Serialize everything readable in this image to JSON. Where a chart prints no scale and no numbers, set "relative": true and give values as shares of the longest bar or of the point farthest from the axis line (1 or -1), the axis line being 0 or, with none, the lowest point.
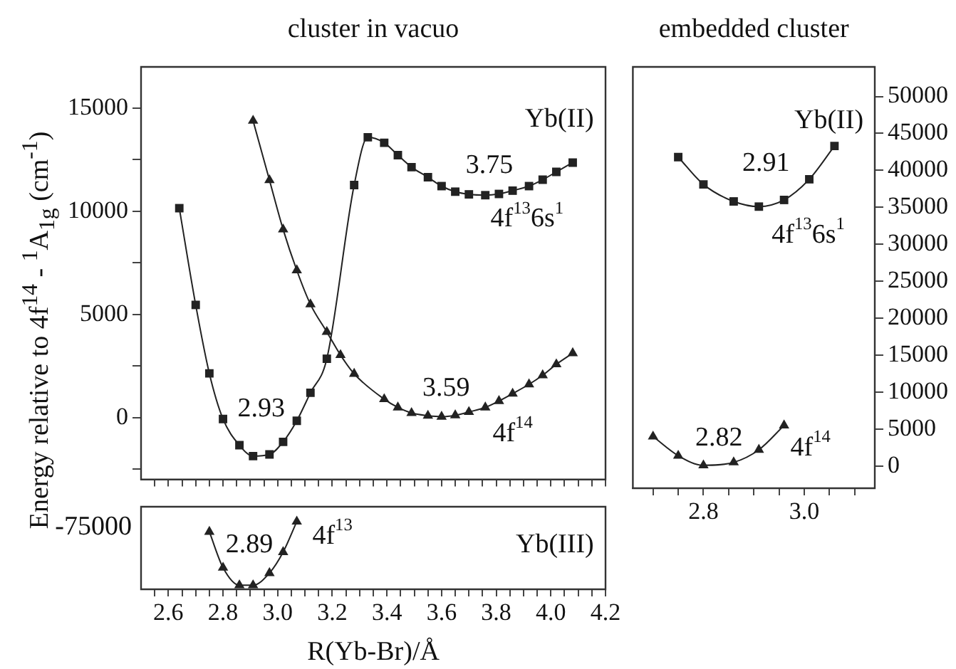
{
  "chart_data": [
    {
      "type": "line",
      "title": "cluster in vacuo",
      "ylabel": "Energy relative to 4f$^{14}$ - $^{1}$A$_{1g}$ (cm$^{-1}$)",
      "xlim": [
        2.5,
        4.2
      ],
      "ylim": [
        -3000,
        17000
      ],
      "xticks": [
        2.55,
        2.6,
        2.65,
        2.7,
        2.75,
        2.8,
        2.85,
        2.9,
        2.95,
        3,
        3.05,
        3.1,
        3.15,
        3.2,
        3.25,
        3.3,
        3.35,
        3.4,
        3.45,
        3.5,
        3.55,
        3.6,
        3.65,
        3.7,
        3.75,
        3.8,
        3.85,
        3.9,
        3.95,
        4,
        4.05,
        4.1,
        4.15,
        4.2
      ],
      "yticks": [
        {
          "value": -2500,
          "label": null
        },
        0,
        {
          "value": 2500,
          "label": null
        },
        5000,
        {
          "value": 7500,
          "label": null
        },
        10000,
        {
          "value": 12500,
          "label": null
        },
        15000
      ],
      "tick_labels": "y",
      "grid": false,
      "line_style": "solid",
      "series": [
        {
          "color": "#222222",
          "marker": "square",
          "x": [
            2.64,
            2.7,
            2.75,
            2.8,
            2.86,
            2.91,
            2.97,
            3.02,
            3.07,
            3.12,
            3.18,
            3.28,
            3.33,
            3.39,
            3.44,
            3.49,
            3.55,
            3.6,
            3.65,
            3.7,
            3.76,
            3.81,
            3.86,
            3.92,
            3.97,
            4.02,
            4.08
          ],
          "values": [
            10150,
            5460,
            2140,
            -70,
            -1340,
            -1870,
            -1790,
            -1180,
            -160,
            1200,
            2850,
            11270,
            13590,
            13320,
            12720,
            12140,
            11650,
            11220,
            10950,
            10820,
            10780,
            10840,
            11000,
            11220,
            11530,
            11910,
            12360
          ]
        },
        {
          "color": "#222222",
          "marker": "triangle",
          "x": [
            2.91,
            2.97,
            3.02,
            3.07,
            3.12,
            3.18,
            3.23,
            3.28,
            3.39,
            3.44,
            3.49,
            3.55,
            3.6,
            3.65,
            3.7,
            3.76,
            3.81,
            3.86,
            3.92,
            3.97,
            4.02,
            4.08
          ],
          "values": [
            14390,
            11510,
            9120,
            7140,
            5490,
            4150,
            3030,
            2120,
            890,
            490,
            220,
            90,
            40,
            110,
            270,
            490,
            800,
            1160,
            1610,
            2050,
            2580,
            3120
          ]
        }
      ],
      "annotations": [
        "Yb(II)",
        "3.75",
        "4f$^{13}$6s$^{1}$",
        "2.93",
        "3.59",
        "4f$^{14}$"
      ]
    },
    {
      "type": "line",
      "xlabel": "R(Yb-Br)/Å",
      "xlim": [
        2.5,
        4.2
      ],
      "relative": true,
      "xticks": [
        {
          "value": 2.55,
          "label": null
        },
        2.6,
        {
          "value": 2.65,
          "label": null
        },
        {
          "value": 2.7,
          "label": null
        },
        {
          "value": 2.75,
          "label": null
        },
        2.8,
        {
          "value": 2.85,
          "label": null
        },
        {
          "value": 2.9,
          "label": null
        },
        {
          "value": 2.95,
          "label": null
        },
        {
          "value": 3,
          "label": "3.0"
        },
        {
          "value": 3.05,
          "label": null
        },
        {
          "value": 3.1,
          "label": null
        },
        {
          "value": 3.15,
          "label": null
        },
        3.2,
        {
          "value": 3.25,
          "label": null
        },
        {
          "value": 3.3,
          "label": null
        },
        {
          "value": 3.35,
          "label": null
        },
        3.4,
        {
          "value": 3.45,
          "label": null
        },
        {
          "value": 3.5,
          "label": null
        },
        {
          "value": 3.55,
          "label": null
        },
        3.6,
        {
          "value": 3.65,
          "label": null
        },
        {
          "value": 3.7,
          "label": null
        },
        {
          "value": 3.75,
          "label": null
        },
        3.8,
        {
          "value": 3.85,
          "label": null
        },
        {
          "value": 3.9,
          "label": null
        },
        {
          "value": 3.95,
          "label": null
        },
        {
          "value": 4,
          "label": "4.0"
        },
        {
          "value": 4.05,
          "label": null
        },
        {
          "value": 4.1,
          "label": null
        },
        {
          "value": 4.15,
          "label": null
        },
        4.2
      ],
      "grid": false,
      "line_style": "solid",
      "series": [
        {
          "color": "#222222",
          "marker": "triangle",
          "x": [
            2.75,
            2.8,
            2.86,
            2.91,
            2.97,
            3.02,
            3.07
          ],
          "values": [
            0.85,
            0.32,
            0.06,
            0.06,
            0.24,
            0.55,
            1
          ]
        }
      ],
      "annotations": [
        "-75000",
        "Yb(III)",
        "2.89",
        "4f$^{13}$"
      ]
    },
    {
      "type": "line",
      "title": "embedded cluster",
      "xlim": [
        2.66,
        3.14
      ],
      "ylim": [
        -3000,
        54000
      ],
      "xticks": [
        {
          "value": 2.7,
          "label": null
        },
        {
          "value": 2.75,
          "label": null
        },
        2.8,
        {
          "value": 2.85,
          "label": null
        },
        {
          "value": 2.9,
          "label": null
        },
        {
          "value": 2.95,
          "label": null
        },
        {
          "value": 3,
          "label": "3.0"
        },
        {
          "value": 3.05,
          "label": null
        },
        {
          "value": 3.1,
          "label": null
        }
      ],
      "yticks": [
        0,
        5000,
        10000,
        15000,
        20000,
        25000,
        30000,
        35000,
        40000,
        45000,
        50000
      ],
      "grid": false,
      "line_style": "solid",
      "series": [
        {
          "color": "#222222",
          "marker": "square",
          "x": [
            2.75,
            2.8,
            2.86,
            2.91,
            2.96,
            3.01,
            3.06
          ],
          "values": [
            41800,
            38100,
            35800,
            35100,
            36000,
            38800,
            43300
          ]
        },
        {
          "color": "#222222",
          "marker": "triangle",
          "x": [
            2.7,
            2.75,
            2.8,
            2.86,
            2.91,
            2.96
          ],
          "values": [
            4000,
            1400,
            100,
            500,
            2200,
            5500
          ]
        }
      ],
      "annotations": [
        "Yb(II)",
        "2.91",
        "4f$^{13}$6s$^{1}$",
        "2.82",
        "4f$^{14}$"
      ]
    }
  ]
}
